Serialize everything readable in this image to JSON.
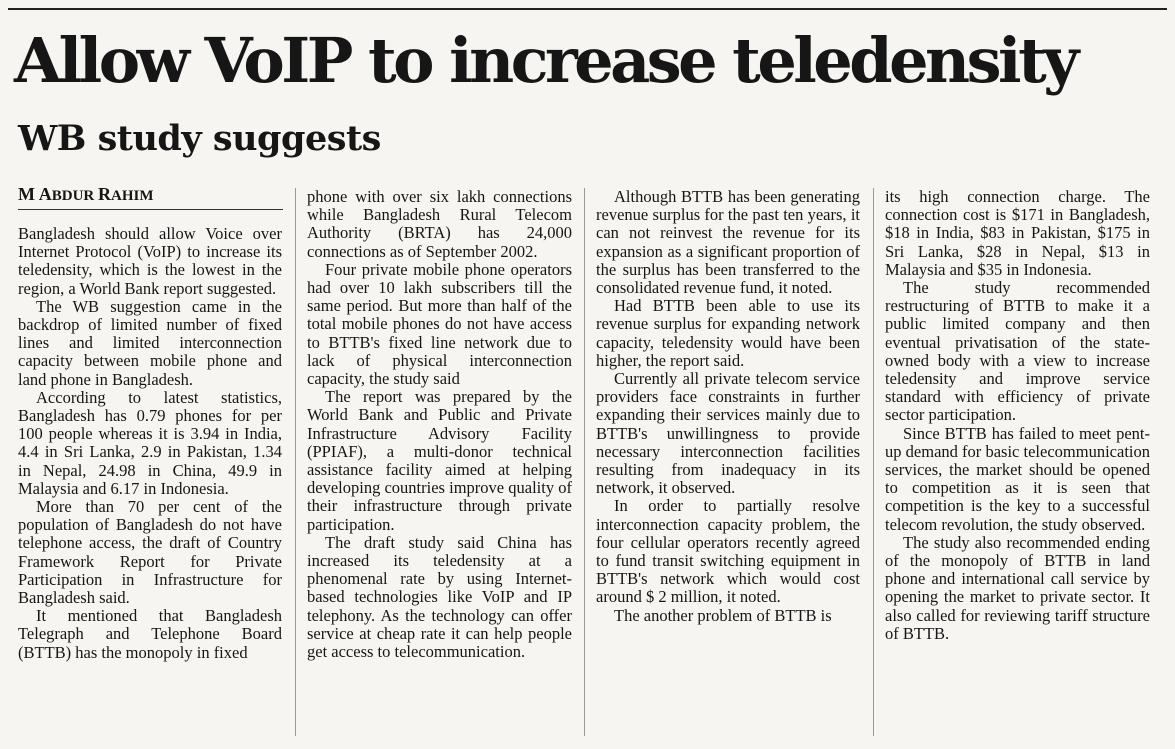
{
  "article": {
    "headline": "Allow VoIP to increase teledensity",
    "subheadline": "WB study suggests",
    "byline": {
      "first_initial": "M",
      "name_rest": "ABDUR",
      "last_initial": "R",
      "last_rest": "AHIM"
    },
    "paragraphs": [
      "Bangladesh should allow Voice over Internet Protocol (VoIP) to increase its teledensity, which is the lowest in the region, a World Bank report suggested.",
      "The WB suggestion came in the backdrop of limited number of fixed lines and limited interconnection capacity between mobile phone and land phone in Bangladesh.",
      "According to latest statistics, Bangladesh has 0.79 phones for per 100 people whereas it is 3.94 in India, 4.4 in Sri Lanka, 2.9 in Pakistan, 1.34 in Nepal, 24.98 in China, 49.9 in Malaysia and 6.17 in Indonesia.",
      "More than 70 per cent of the population of Bangladesh do not have telephone access, the draft of Country Framework Report for Private Participation in Infrastructure for Bangladesh said.",
      "It mentioned that Bangladesh Telegraph and Telephone Board (BTTB) has the monopoly in fixed",
      "phone with over six lakh connections while Bangladesh Rural Telecom Authority (BRTA) has 24,000 connections as of September 2002.",
      "Four private mobile phone operators had over 10 lakh subscribers till the same  period. But more than half of the total mobile phones do not have access to BTTB's fixed line network due to lack of physical interconnection capacity, the study said",
      "The report was prepared by the World Bank and Public and Private Infrastructure Advisory Facility (PPIAF), a multi-donor technical assistance facility aimed at helping developing countries improve quality of their infrastructure through private participation.",
      "The draft study said China has increased its teledensity at a phenomenal rate by using Internet-based technologies like VoIP and IP telephony. As the technology can offer service at cheap rate it can help people get access to telecommunication.",
      "Although BTTB has been generating revenue surplus for the past ten years, it can not reinvest the revenue for its expansion as a significant proportion of the surplus has been transferred to the consolidated revenue fund, it noted.",
      "Had BTTB been able to use its revenue surplus for expanding network capacity, teledensity would have been higher, the report said.",
      "Currently all private telecom service providers face constraints in further expanding their services mainly due to BTTB's unwillingness to provide necessary interconnection facilities resulting from inadequacy in its network, it observed.",
      "In order to partially resolve interconnection capacity problem, the four cellular operators recently agreed to fund transit switching equipment in BTTB's network which would cost around $ 2 million, it noted.",
      "The another problem of BTTB is",
      "its high connection charge. The connection cost is $171 in Bangladesh, $18 in India, $83 in Pakistan, $175 in Sri Lanka, $28 in Nepal, $13 in Malaysia and $35 in Indonesia.",
      "The study recommended restructuring of BTTB to make it a public limited company and then eventual privatisation of the state-owned body with a view to increase teledensity and improve service standard with efficiency of private sector participation.",
      "Since BTTB has failed to meet pent-up demand for basic telecommunication services, the market should be opened to competition as it is seen that competition is the key to a successful telecom revolution, the study observed.",
      "The study also recommended ending of the monopoly of BTTB in land phone and international call service by opening the market to private sector. It also called for reviewing tariff structure of BTTB."
    ]
  }
}
